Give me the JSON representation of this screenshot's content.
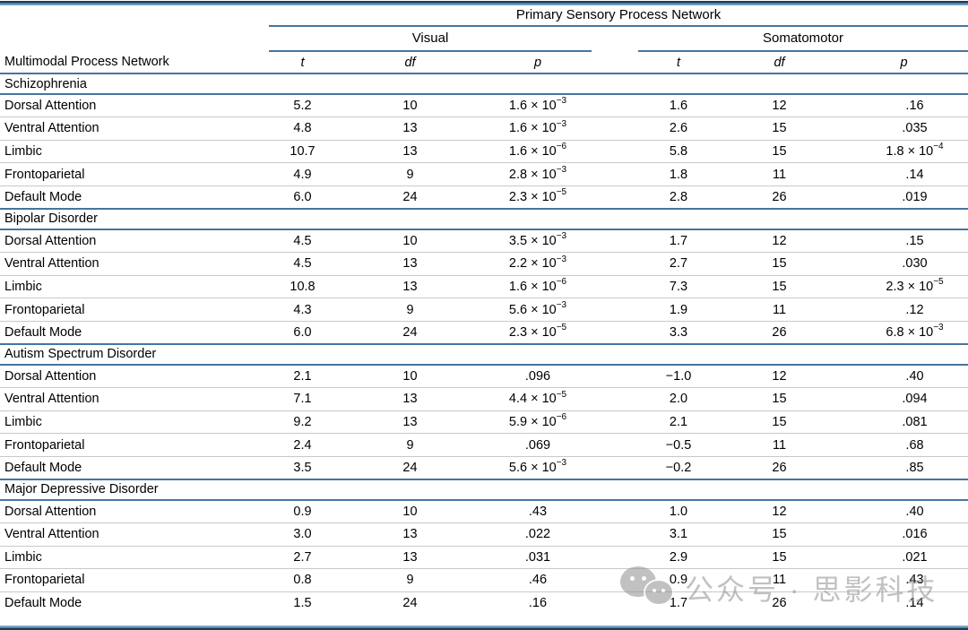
{
  "table": {
    "group_header": "Primary Sensory Process Network",
    "visual_header": "Visual",
    "somatomotor_header": "Somatomotor",
    "row_label_header": "Multimodal Process Network",
    "stat_headers": {
      "t": "t",
      "df": "df",
      "p": "p"
    },
    "sections": [
      {
        "label": "Schizophrenia",
        "rows": [
          {
            "network": "Dorsal Attention",
            "visual": {
              "t": "5.2",
              "df": "10",
              "p": "1.6 × 10^−3"
            },
            "somatomotor": {
              "t": "1.6",
              "df": "12",
              "p": ".16"
            }
          },
          {
            "network": "Ventral Attention",
            "visual": {
              "t": "4.8",
              "df": "13",
              "p": "1.6 × 10^−3"
            },
            "somatomotor": {
              "t": "2.6",
              "df": "15",
              "p": ".035"
            }
          },
          {
            "network": "Limbic",
            "visual": {
              "t": "10.7",
              "df": "13",
              "p": "1.6 × 10^−6"
            },
            "somatomotor": {
              "t": "5.8",
              "df": "15",
              "p": "1.8 × 10^−4"
            }
          },
          {
            "network": "Frontoparietal",
            "visual": {
              "t": "4.9",
              "df": "9",
              "p": "2.8 × 10^−3"
            },
            "somatomotor": {
              "t": "1.8",
              "df": "11",
              "p": ".14"
            }
          },
          {
            "network": "Default Mode",
            "visual": {
              "t": "6.0",
              "df": "24",
              "p": "2.3 × 10^−5"
            },
            "somatomotor": {
              "t": "2.8",
              "df": "26",
              "p": ".019"
            }
          }
        ]
      },
      {
        "label": "Bipolar Disorder",
        "rows": [
          {
            "network": "Dorsal Attention",
            "visual": {
              "t": "4.5",
              "df": "10",
              "p": "3.5 × 10^−3"
            },
            "somatomotor": {
              "t": "1.7",
              "df": "12",
              "p": ".15"
            }
          },
          {
            "network": "Ventral Attention",
            "visual": {
              "t": "4.5",
              "df": "13",
              "p": "2.2 × 10^−3"
            },
            "somatomotor": {
              "t": "2.7",
              "df": "15",
              "p": ".030"
            }
          },
          {
            "network": "Limbic",
            "visual": {
              "t": "10.8",
              "df": "13",
              "p": "1.6 × 10^−6"
            },
            "somatomotor": {
              "t": "7.3",
              "df": "15",
              "p": "2.3 × 10^−5"
            }
          },
          {
            "network": "Frontoparietal",
            "visual": {
              "t": "4.3",
              "df": "9",
              "p": "5.6 × 10^−3"
            },
            "somatomotor": {
              "t": "1.9",
              "df": "11",
              "p": ".12"
            }
          },
          {
            "network": "Default Mode",
            "visual": {
              "t": "6.0",
              "df": "24",
              "p": "2.3 × 10^−5"
            },
            "somatomotor": {
              "t": "3.3",
              "df": "26",
              "p": "6.8 × 10^−3"
            }
          }
        ]
      },
      {
        "label": "Autism Spectrum Disorder",
        "rows": [
          {
            "network": "Dorsal Attention",
            "visual": {
              "t": "2.1",
              "df": "10",
              "p": ".096"
            },
            "somatomotor": {
              "t": "−1.0",
              "df": "12",
              "p": ".40"
            }
          },
          {
            "network": "Ventral Attention",
            "visual": {
              "t": "7.1",
              "df": "13",
              "p": "4.4 × 10^−5"
            },
            "somatomotor": {
              "t": "2.0",
              "df": "15",
              "p": ".094"
            }
          },
          {
            "network": "Limbic",
            "visual": {
              "t": "9.2",
              "df": "13",
              "p": "5.9 × 10^−6"
            },
            "somatomotor": {
              "t": "2.1",
              "df": "15",
              "p": ".081"
            }
          },
          {
            "network": "Frontoparietal",
            "visual": {
              "t": "2.4",
              "df": "9",
              "p": ".069"
            },
            "somatomotor": {
              "t": "−0.5",
              "df": "11",
              "p": ".68"
            }
          },
          {
            "network": "Default Mode",
            "visual": {
              "t": "3.5",
              "df": "24",
              "p": "5.6 × 10^−3"
            },
            "somatomotor": {
              "t": "−0.2",
              "df": "26",
              "p": ".85"
            }
          }
        ]
      },
      {
        "label": "Major Depressive Disorder",
        "rows": [
          {
            "network": "Dorsal Attention",
            "visual": {
              "t": "0.9",
              "df": "10",
              "p": ".43"
            },
            "somatomotor": {
              "t": "1.0",
              "df": "12",
              "p": ".40"
            }
          },
          {
            "network": "Ventral Attention",
            "visual": {
              "t": "3.0",
              "df": "13",
              "p": ".022"
            },
            "somatomotor": {
              "t": "3.1",
              "df": "15",
              "p": ".016"
            }
          },
          {
            "network": "Limbic",
            "visual": {
              "t": "2.7",
              "df": "13",
              "p": ".031"
            },
            "somatomotor": {
              "t": "2.9",
              "df": "15",
              "p": ".021"
            }
          },
          {
            "network": "Frontoparietal",
            "visual": {
              "t": "0.8",
              "df": "9",
              "p": ".46"
            },
            "somatomotor": {
              "t": "0.9",
              "df": "11",
              "p": ".43"
            }
          },
          {
            "network": "Default Mode",
            "visual": {
              "t": "1.5",
              "df": "24",
              "p": ".16"
            },
            "somatomotor": {
              "t": "1.7",
              "df": "26",
              "p": ".14"
            }
          }
        ]
      }
    ]
  },
  "watermark": {
    "icon": "wechat-icon",
    "text": "公众号 · 思影科技"
  },
  "colors": {
    "rule_blue": "#46749e",
    "rule_navy": "#1d3f5e",
    "row_divider": "#c9c9c9",
    "text": "#000000",
    "watermark_gray": "#8f8f8f"
  }
}
